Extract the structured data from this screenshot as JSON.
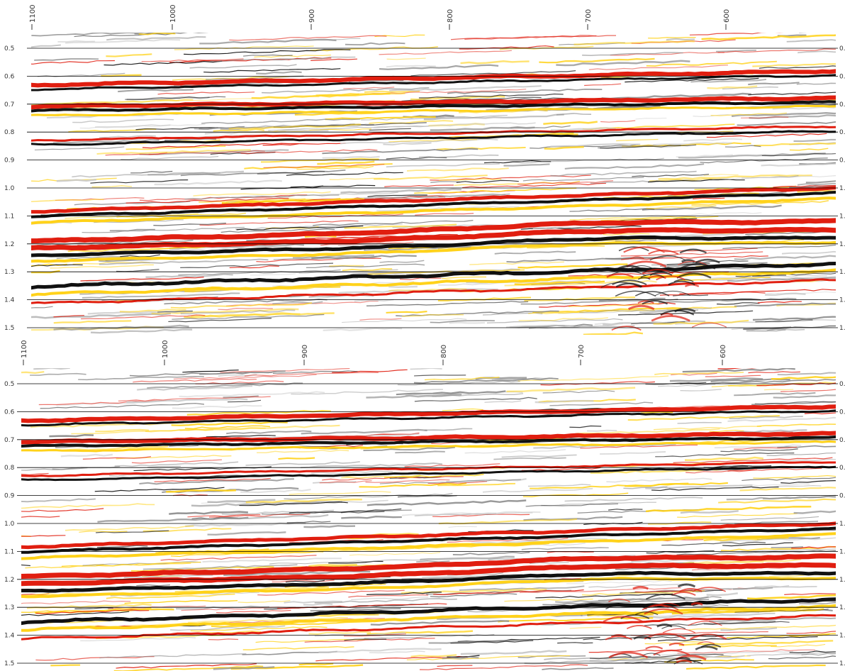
{
  "colors": {
    "peak_strong": "#e01e10",
    "peak_mid": "#ffd21a",
    "trough_strong": "#111111",
    "trough_mid": "#8a8a8a",
    "background": "#ffffff",
    "gridline": "#000000"
  },
  "panels": [
    {
      "id": "top",
      "x_ticks": [
        "1100",
        "1000",
        "900",
        "800",
        "700",
        "600"
      ],
      "y_ticks": [
        "0.5",
        "0.6",
        "0.7",
        "0.8",
        "0.9",
        "1.0",
        "1.1",
        "1.2",
        "1.3",
        "1.4",
        "1.5"
      ],
      "y_ticks_right": [
        "0.",
        "0.",
        "0.",
        "0.",
        "0.",
        "1.",
        "1.",
        "1.",
        "1.",
        "1.",
        "1."
      ]
    },
    {
      "id": "bottom",
      "x_ticks": [
        "1100",
        "1000",
        "900",
        "800",
        "700",
        "600"
      ],
      "y_ticks": [
        "0.5",
        "0.6",
        "0.7",
        "0.8",
        "0.9",
        "1.0",
        "1.1",
        "1.2",
        "1.3",
        "1.4",
        "1.5"
      ],
      "y_ticks_right": [
        "0.",
        "0.",
        "0.",
        "0.",
        "0.",
        "1.",
        "1.",
        "1.",
        "1.",
        "1.",
        "1."
      ]
    }
  ]
}
